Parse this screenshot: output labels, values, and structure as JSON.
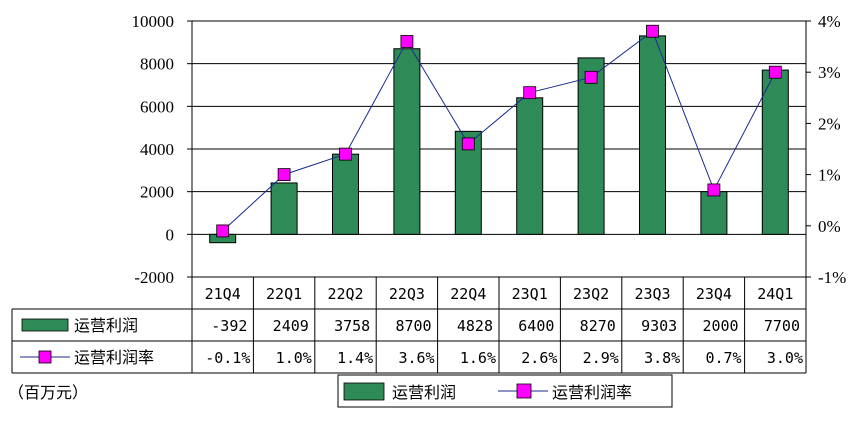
{
  "chart_data": {
    "type": "bar",
    "categories": [
      "21Q4",
      "22Q1",
      "22Q2",
      "22Q3",
      "22Q4",
      "23Q1",
      "23Q2",
      "23Q3",
      "23Q4",
      "24Q1"
    ],
    "series": [
      {
        "name": "运营利润",
        "type": "bar",
        "axis": "left",
        "color": "#2e8b57",
        "values": [
          -392,
          2409,
          3758,
          8700,
          4828,
          6400,
          8270,
          9303,
          2000,
          7700
        ],
        "labels": [
          "-392",
          "2409",
          "3758",
          "8700",
          "4828",
          "6400",
          "8270",
          "9303",
          "2000",
          "7700"
        ]
      },
      {
        "name": "运营利润率",
        "type": "line",
        "axis": "right",
        "color": "#ff00ff",
        "values": [
          -0.1,
          1.0,
          1.4,
          3.6,
          1.6,
          2.6,
          2.9,
          3.8,
          0.7,
          3.0
        ],
        "labels": [
          "-0.1%",
          "1.0%",
          "1.4%",
          "3.6%",
          "1.6%",
          "2.6%",
          "2.9%",
          "3.8%",
          "0.7%",
          "3.0%"
        ]
      }
    ],
    "y_left": {
      "ylim": [
        -2000,
        10000
      ],
      "ticks": [
        -2000,
        0,
        2000,
        4000,
        6000,
        8000,
        10000
      ],
      "tick_labels": [
        "-2000",
        "0",
        "2000",
        "4000",
        "6000",
        "8000",
        "10000"
      ]
    },
    "y_right": {
      "ylim": [
        -1,
        4
      ],
      "ticks": [
        -1,
        0,
        1,
        2,
        3,
        4
      ],
      "tick_labels": [
        "-1%",
        "0%",
        "1%",
        "2%",
        "3%",
        "4%"
      ]
    },
    "unit_label": "（百万元）",
    "grid": true,
    "legend_position": "bottom",
    "data_table": true
  }
}
